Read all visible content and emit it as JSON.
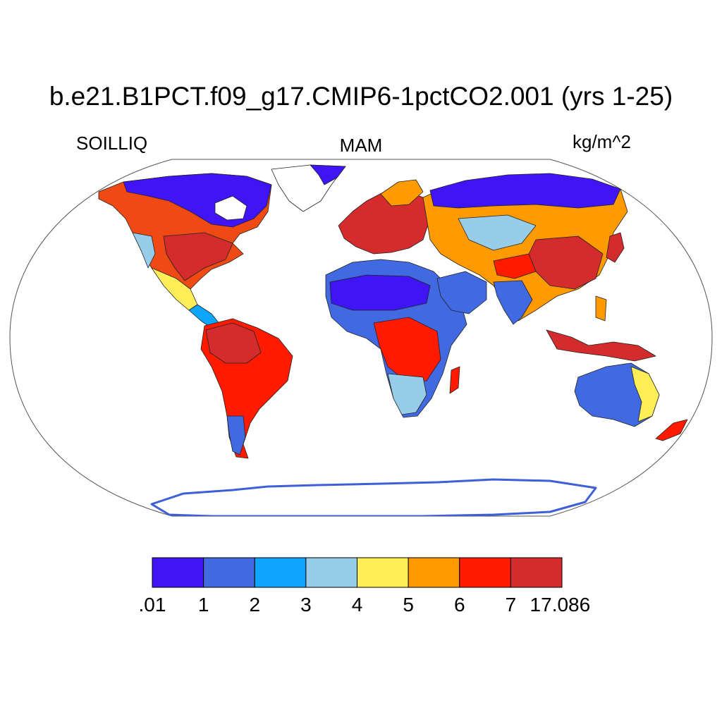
{
  "title": "b.e21.B1PCT.f09_g17.CMIP6-1pctCO2.001 (yrs 1-25)",
  "left_label": "SOILLIQ",
  "center_label": "MAM",
  "right_label": "kg/m^2",
  "colorbar": {
    "labels": [
      ".01",
      "1",
      "2",
      "3",
      "4",
      "5",
      "6",
      "7",
      "17.086"
    ],
    "colors": [
      "#3f14f5",
      "#4169e1",
      "#0ea5ff",
      "#98cdea",
      "#ffee58",
      "#ff9a00",
      "#ff1a00",
      "#d42c2c"
    ]
  }
}
